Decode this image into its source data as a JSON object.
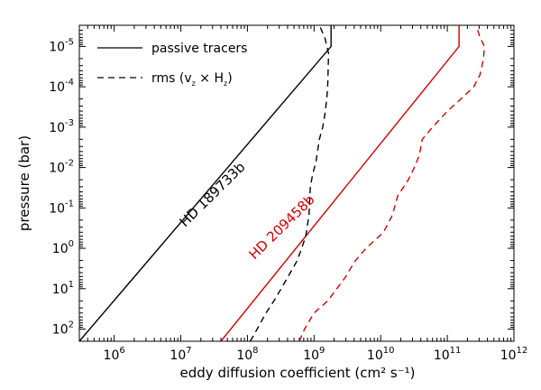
{
  "chart_data": {
    "type": "line",
    "xlabel": "eddy diffusion coefficient (cm² s⁻¹)",
    "ylabel": "pressure (bar)",
    "x_scale": "log",
    "y_scale": "log",
    "y_inverted": true,
    "xlim": [
      300000,
      1000000000000
    ],
    "ylim": [
      200,
      3e-06
    ],
    "x_ticks": [
      {
        "value": 1000000,
        "base": "10",
        "exp": "6"
      },
      {
        "value": 10000000,
        "base": "10",
        "exp": "7"
      },
      {
        "value": 100000000,
        "base": "10",
        "exp": "8"
      },
      {
        "value": 1000000000,
        "base": "10",
        "exp": "9"
      },
      {
        "value": 10000000000,
        "base": "10",
        "exp": "10"
      },
      {
        "value": 100000000000,
        "base": "10",
        "exp": "11"
      },
      {
        "value": 1000000000000,
        "base": "10",
        "exp": "12"
      }
    ],
    "y_ticks": [
      {
        "value": 1e-05,
        "base": "10",
        "exp": "-5"
      },
      {
        "value": 0.0001,
        "base": "10",
        "exp": "-4"
      },
      {
        "value": 0.001,
        "base": "10",
        "exp": "-3"
      },
      {
        "value": 0.01,
        "base": "10",
        "exp": "-2"
      },
      {
        "value": 0.1,
        "base": "10",
        "exp": "-1"
      },
      {
        "value": 1,
        "base": "10",
        "exp": "0"
      },
      {
        "value": 10,
        "base": "10",
        "exp": "1"
      },
      {
        "value": 100,
        "base": "10",
        "exp": "2"
      }
    ],
    "legend": {
      "placement": "top-left",
      "entries": [
        {
          "label": "passive tracers",
          "style": "solid"
        },
        {
          "label": "rms (v",
          "sub1": "z",
          "label_mid": " × H",
          "sub2": "z",
          "label_end": ")",
          "style": "dashed"
        }
      ]
    },
    "series": [
      {
        "name": "HD 189733b",
        "kind": "passive tracers",
        "color": "#000000",
        "style": "solid",
        "points": [
          [
            300000,
            200
          ],
          [
            1800000000,
            1e-05
          ],
          [
            1800000000,
            3e-06
          ]
        ]
      },
      {
        "name": "HD 209458b",
        "kind": "passive tracers",
        "color": "#cc0000",
        "style": "solid",
        "points": [
          [
            40000000,
            200
          ],
          [
            150000000000,
            1e-05
          ],
          [
            150000000000,
            3e-06
          ]
        ]
      },
      {
        "name": "HD 189733b",
        "kind": "rms",
        "color": "#000000",
        "style": "dashed",
        "points": [
          [
            110000000.0,
            200
          ],
          [
            140000000.0,
            100
          ],
          [
            190000000.0,
            40
          ],
          [
            250000000.0,
            20
          ],
          [
            320000000.0,
            10
          ],
          [
            440000000.0,
            4
          ],
          [
            560000000.0,
            2
          ],
          [
            650000000.0,
            1
          ],
          [
            750000000.0,
            0.5
          ],
          [
            840000000.0,
            0.15
          ],
          [
            860000000.0,
            0.06
          ],
          [
            880000000.0,
            0.03
          ],
          [
            950000000.0,
            0.015
          ],
          [
            1070000000.0,
            0.007
          ],
          [
            1200000000.0,
            0.002
          ],
          [
            1350000000.0,
            0.001
          ],
          [
            1450000000.0,
            0.0005
          ],
          [
            1550000000.0,
            0.0002
          ],
          [
            1600000000.0,
            0.0001
          ],
          [
            1620000000.0,
            5e-05
          ],
          [
            1650000000.0,
            1.5e-05
          ],
          [
            1450000000.0,
            6e-06
          ],
          [
            1200000000.0,
            3e-06
          ]
        ]
      },
      {
        "name": "HD 209458b",
        "kind": "rms",
        "color": "#cc0000",
        "style": "dashed",
        "points": [
          [
            600000000.0,
            200
          ],
          [
            720000000.0,
            100
          ],
          [
            1000000000.0,
            40
          ],
          [
            1600000000.0,
            20
          ],
          [
            2200000000.0,
            10
          ],
          [
            3000000000.0,
            5
          ],
          [
            3600000000.0,
            3
          ],
          [
            4200000000.0,
            2
          ],
          [
            6000000000.0,
            1
          ],
          [
            11000000000.0,
            0.4
          ],
          [
            15000000000.0,
            0.15
          ],
          [
            18000000000.0,
            0.05
          ],
          [
            26000000000.0,
            0.02
          ],
          [
            32000000000.0,
            0.01
          ],
          [
            38000000000.0,
            0.005
          ],
          [
            42000000000.0,
            0.002
          ],
          [
            60000000000.0,
            0.001
          ],
          [
            100000000000.0,
            0.0004
          ],
          [
            160000000000.0,
            0.0002
          ],
          [
            250000000000.0,
            0.0001
          ],
          [
            310000000000.0,
            5e-05
          ],
          [
            350000000000.0,
            2e-05
          ],
          [
            360000000000.0,
            1e-05
          ],
          [
            310000000000.0,
            6e-06
          ],
          [
            270000000000.0,
            3e-06
          ]
        ]
      }
    ],
    "annotations": [
      {
        "text": "HD 189733b",
        "color": "#000000"
      },
      {
        "text": "HD 209458b",
        "color": "#cc0000"
      }
    ]
  }
}
